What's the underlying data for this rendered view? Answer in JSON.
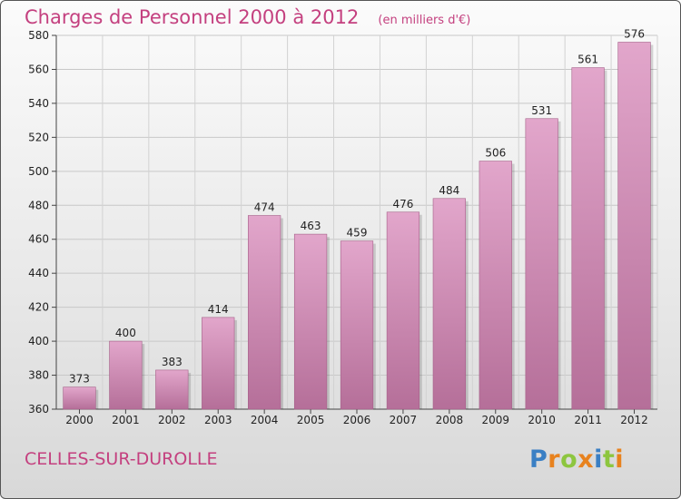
{
  "chart_data": {
    "type": "bar",
    "title": "Charges de Personnel 2000 à 2012",
    "subtitle": "(en milliers d'€)",
    "categories": [
      "2000",
      "2001",
      "2002",
      "2003",
      "2004",
      "2005",
      "2006",
      "2007",
      "2008",
      "2009",
      "2010",
      "2011",
      "2012"
    ],
    "values": [
      373,
      400,
      383,
      414,
      474,
      463,
      459,
      476,
      484,
      506,
      531,
      561,
      576
    ],
    "ylim": [
      360,
      580
    ],
    "yticks": [
      360,
      380,
      400,
      420,
      440,
      460,
      480,
      500,
      520,
      540,
      560,
      580
    ],
    "grid": true,
    "colors": {
      "bar_top": "#e2a6cb",
      "bar_bottom": "#b56f99",
      "title": "#c4407f"
    }
  },
  "footer": {
    "commune": "CELLES-SUR-DUROLLE",
    "logo": "Proxiti"
  },
  "logo_colors": [
    "#3a7fc4",
    "#e8821e",
    "#8dc63f",
    "#e8821e",
    "#3a7fc4",
    "#8dc63f",
    "#e8821e"
  ]
}
